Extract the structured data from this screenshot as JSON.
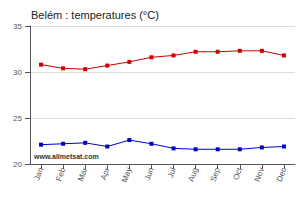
{
  "chart_data": {
    "type": "line",
    "title": "Belém : temperatures (°C)",
    "categories": [
      "Jan",
      "Feb",
      "Mar",
      "Apr",
      "May",
      "Jun",
      "Jul",
      "Aug",
      "Sep",
      "Oct",
      "Nov",
      "Dec"
    ],
    "series": [
      {
        "color": "#cc0000",
        "values": [
          30.8,
          30.4,
          30.3,
          30.7,
          31.1,
          31.6,
          31.8,
          32.2,
          32.2,
          32.3,
          32.3,
          31.8
        ]
      },
      {
        "color": "#0000cc",
        "values": [
          22.1,
          22.2,
          22.3,
          21.9,
          22.6,
          22.2,
          21.7,
          21.6,
          21.6,
          21.6,
          21.8,
          21.9
        ]
      }
    ],
    "marker": "square",
    "ylim": [
      20,
      35
    ],
    "yticks": [
      20,
      25,
      30,
      35
    ],
    "grid": true,
    "annotations": [
      "www.allmetsat.com"
    ]
  }
}
